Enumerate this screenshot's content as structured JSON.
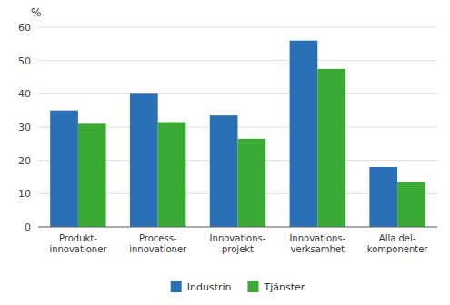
{
  "chart_data": {
    "type": "bar",
    "categories": [
      "Produkt-\ninnovationer",
      "Process-\ninnovationer",
      "Innovations-\nprojekt",
      "Innovations-\nverksamhet",
      "Alla del-\nkomponenter"
    ],
    "series": [
      {
        "name": "Industrin",
        "color": "#2970b6",
        "values": [
          35,
          40,
          33.5,
          56,
          18
        ]
      },
      {
        "name": "Tjänster",
        "color": "#3aaa35",
        "values": [
          31,
          31.5,
          26.5,
          47.5,
          13.5
        ]
      }
    ],
    "ylabel": "%",
    "ylim": [
      0,
      60
    ],
    "yticks": [
      0,
      10,
      20,
      30,
      40,
      50,
      60
    ],
    "grid": true,
    "legend": "bottom"
  }
}
